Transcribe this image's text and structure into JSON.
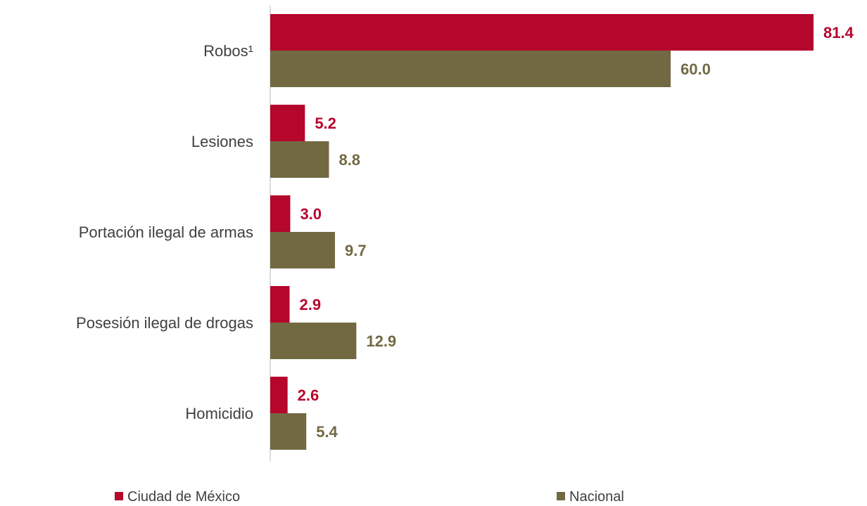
{
  "chart_data": {
    "type": "bar",
    "orientation": "horizontal",
    "categories": [
      "Robos¹",
      "Lesiones",
      "Portación ilegal de armas",
      "Posesión ilegal de drogas",
      "Homicidio"
    ],
    "series": [
      {
        "name": "Ciudad de México",
        "color": "#b5062c",
        "values": [
          81.4,
          5.2,
          3.0,
          2.9,
          2.6
        ],
        "labels": [
          "81.4",
          "5.2",
          "3.0",
          "2.9",
          "2.6"
        ]
      },
      {
        "name": "Nacional",
        "color": "#726943",
        "values": [
          60.0,
          8.8,
          9.7,
          12.9,
          5.4
        ],
        "labels": [
          "60.0",
          "8.8",
          "9.7",
          "12.9",
          "5.4"
        ]
      }
    ],
    "xlim": [
      0,
      81.4
    ],
    "grid": false,
    "legend": "bottom"
  }
}
